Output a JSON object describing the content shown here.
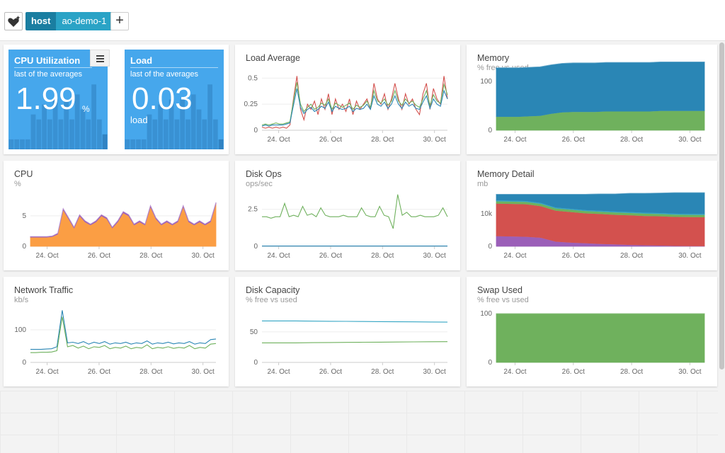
{
  "topbar": {
    "favorite_icon": "heart-star-icon",
    "tag_key": "host",
    "tag_value": "ao-demo-1",
    "add_label": "+"
  },
  "colors": {
    "stat_bg": "#46a7ec",
    "stat_bar": "#2f7fbf",
    "blue": "#2a86b5",
    "green": "#6fb15d",
    "red": "#d3514e",
    "orange": "#fb9e44",
    "purple": "#9b5fb8",
    "teal": "#35a6c4"
  },
  "stats": [
    {
      "title": "CPU Utilization",
      "subtitle": "last of the averages",
      "value": "1.99",
      "unit": "%",
      "has_menu": true,
      "bars": [
        0.1,
        0.1,
        0.1,
        0.1,
        0.35,
        0.3,
        0.45,
        0.3,
        0.5,
        0.3,
        0.5,
        0.3,
        0.55,
        0.4,
        0.3,
        0.65,
        0.3,
        0.15
      ]
    },
    {
      "title": "Load",
      "subtitle": "last of the averages",
      "value": "0.03",
      "unit_below": "load",
      "bars": [
        0.1,
        0.1,
        0.1,
        0.1,
        0.35,
        0.3,
        0.45,
        0.3,
        0.5,
        0.3,
        0.5,
        0.3,
        0.55,
        0.4,
        0.3,
        0.65,
        0.3,
        0.1
      ]
    }
  ],
  "panels": [
    {
      "id": "load-average",
      "title": "Load Average",
      "subtitle": "",
      "chart_data": {
        "type": "line",
        "x_ticks": [
          "24. Oct",
          "26. Oct",
          "28. Oct",
          "30. Oct"
        ],
        "y_ticks": [
          "0",
          "0.25",
          "0.5"
        ],
        "ylim": [
          0,
          0.55
        ],
        "series": [
          {
            "color": "#d3514e",
            "values": [
              0.03,
              0.02,
              0.03,
              0.02,
              0.03,
              0.02,
              0.03,
              0.02,
              0.05,
              0.3,
              0.52,
              0.2,
              0.1,
              0.25,
              0.2,
              0.28,
              0.15,
              0.3,
              0.2,
              0.35,
              0.15,
              0.3,
              0.2,
              0.25,
              0.18,
              0.3,
              0.15,
              0.28,
              0.2,
              0.25,
              0.3,
              0.2,
              0.45,
              0.3,
              0.25,
              0.35,
              0.2,
              0.3,
              0.45,
              0.3,
              0.2,
              0.35,
              0.25,
              0.3,
              0.2,
              0.15,
              0.35,
              0.45,
              0.2,
              0.4,
              0.3,
              0.25,
              0.52,
              0.3
            ]
          },
          {
            "color": "#6fb15d",
            "values": [
              0.05,
              0.06,
              0.05,
              0.06,
              0.07,
              0.06,
              0.06,
              0.07,
              0.08,
              0.28,
              0.46,
              0.25,
              0.18,
              0.22,
              0.25,
              0.2,
              0.22,
              0.26,
              0.24,
              0.3,
              0.2,
              0.26,
              0.24,
              0.22,
              0.24,
              0.26,
              0.2,
              0.24,
              0.22,
              0.24,
              0.28,
              0.22,
              0.38,
              0.28,
              0.26,
              0.3,
              0.24,
              0.28,
              0.38,
              0.28,
              0.24,
              0.3,
              0.26,
              0.28,
              0.24,
              0.22,
              0.3,
              0.38,
              0.24,
              0.34,
              0.28,
              0.26,
              0.44,
              0.34
            ]
          },
          {
            "color": "#2a86b5",
            "values": [
              0.04,
              0.05,
              0.04,
              0.05,
              0.05,
              0.05,
              0.05,
              0.06,
              0.07,
              0.24,
              0.4,
              0.22,
              0.16,
              0.2,
              0.22,
              0.18,
              0.2,
              0.23,
              0.21,
              0.27,
              0.18,
              0.23,
              0.21,
              0.2,
              0.21,
              0.23,
              0.18,
              0.21,
              0.2,
              0.21,
              0.25,
              0.2,
              0.33,
              0.25,
              0.23,
              0.27,
              0.21,
              0.25,
              0.33,
              0.25,
              0.21,
              0.27,
              0.23,
              0.25,
              0.21,
              0.2,
              0.27,
              0.33,
              0.21,
              0.3,
              0.25,
              0.23,
              0.38,
              0.3
            ]
          }
        ]
      }
    },
    {
      "id": "memory",
      "title": "Memory",
      "subtitle": "% free vs used",
      "chart_data": {
        "type": "area",
        "x_ticks": [
          "24. Oct",
          "26. Oct",
          "28. Oct",
          "30. Oct"
        ],
        "y_ticks": [
          "0",
          "100"
        ],
        "ylim": [
          0,
          100
        ],
        "series": [
          {
            "color": "#6fb15d",
            "values": [
              28,
              28,
              28,
              29,
              30,
              34,
              37,
              38,
              38,
              38,
              39,
              39,
              39,
              39,
              39,
              40,
              40,
              40,
              40,
              40
            ]
          },
          {
            "color": "#2a86b5",
            "values": [
              100,
              100,
              100,
              100,
              100,
              100,
              100,
              100,
              100,
              100,
              100,
              100,
              100,
              100,
              100,
              100,
              100,
              100,
              100,
              100
            ]
          }
        ]
      }
    },
    {
      "id": "cpu",
      "title": "CPU",
      "subtitle": "%",
      "chart_data": {
        "type": "area",
        "x_ticks": [
          "24. Oct",
          "26. Oct",
          "28. Oct",
          "30. Oct"
        ],
        "y_ticks": [
          "0",
          "5"
        ],
        "ylim": [
          0,
          8
        ],
        "series": [
          {
            "color": "#fb9e44",
            "values": [
              1.5,
              1.5,
              1.5,
              1.5,
              1.6,
              2.0,
              6.0,
              4.5,
              3.0,
              5.0,
              4.0,
              3.5,
              4.0,
              5.0,
              4.5,
              3.0,
              4.0,
              5.5,
              5.0,
              3.5,
              4.0,
              3.5,
              6.5,
              4.5,
              3.5,
              4.0,
              3.5,
              4.0,
              6.5,
              4.0,
              3.5,
              4.0,
              3.5,
              4.0,
              7.0
            ]
          },
          {
            "color": "#9b5fb8",
            "values": [
              0.1,
              0.1,
              0.1,
              0.1,
              0.1,
              0.15,
              0.2,
              0.2,
              0.15,
              0.2,
              0.2,
              0.15,
              0.2,
              0.2,
              0.2,
              0.15,
              0.2,
              0.2,
              0.2,
              0.15,
              0.2,
              0.15,
              0.2,
              0.2,
              0.15,
              0.2,
              0.15,
              0.2,
              0.2,
              0.2,
              0.15,
              0.2,
              0.15,
              0.2,
              0.2
            ]
          }
        ]
      }
    },
    {
      "id": "disk-ops",
      "title": "Disk Ops",
      "subtitle": "ops/sec",
      "chart_data": {
        "type": "line",
        "x_ticks": [
          "24. Oct",
          "26. Oct",
          "28. Oct",
          "30. Oct"
        ],
        "y_ticks": [
          "0",
          "2.5"
        ],
        "ylim": [
          0,
          3.3
        ],
        "series": [
          {
            "color": "#6fb15d",
            "values": [
              2.0,
              2.0,
              1.9,
              2.0,
              2.0,
              2.9,
              2.0,
              2.1,
              2.0,
              2.7,
              2.1,
              2.2,
              2.0,
              2.6,
              2.1,
              2.0,
              2.0,
              2.0,
              2.1,
              2.0,
              2.0,
              2.0,
              2.6,
              2.1,
              2.0,
              2.0,
              2.7,
              2.1,
              2.0,
              1.2,
              3.5,
              2.1,
              2.3,
              2.0,
              2.0,
              2.1,
              2.0,
              2.0,
              2.0,
              2.1,
              2.6,
              2.0
            ]
          },
          {
            "color": "#2a86b5",
            "values": [
              0.02,
              0.02,
              0.02,
              0.02,
              0.02,
              0.02,
              0.02,
              0.02,
              0.02,
              0.02,
              0.02,
              0.02,
              0.02,
              0.02,
              0.02,
              0.02,
              0.02,
              0.02,
              0.02,
              0.02,
              0.02,
              0.02,
              0.02,
              0.02,
              0.02,
              0.02,
              0.02,
              0.02,
              0.02,
              0.02,
              0.02,
              0.02,
              0.02,
              0.02,
              0.02,
              0.02,
              0.02,
              0.02,
              0.02,
              0.02,
              0.02,
              0.02
            ]
          }
        ]
      }
    },
    {
      "id": "memory-detail",
      "title": "Memory Detail",
      "subtitle": "mb",
      "chart_data": {
        "type": "area",
        "x_ticks": [
          "24. Oct",
          "26. Oct",
          "28. Oct",
          "30. Oct"
        ],
        "y_ticks": [
          "0",
          "10k"
        ],
        "ylim": [
          0,
          15000
        ],
        "series": [
          {
            "color": "#9b5fb8",
            "values": [
              3200,
              3100,
              3000,
              2700,
              1500,
              1200,
              1000,
              800,
              650,
              500,
              400,
              300,
              200,
              150,
              100
            ]
          },
          {
            "color": "#d3514e",
            "values": [
              10000,
              10000,
              10000,
              9700,
              9500,
              9400,
              9200,
              9200,
              9100,
              9100,
              9000,
              9000,
              8900,
              8900,
              8900
            ]
          },
          {
            "color": "#6fb15d",
            "values": [
              700,
              700,
              700,
              700,
              700,
              700,
              700,
              700,
              700,
              700,
              700,
              700,
              700,
              700,
              700
            ]
          },
          {
            "color": "#35a6c4",
            "values": [
              300,
              300,
              300,
              300,
              300,
              300,
              300,
              300,
              300,
              300,
              300,
              300,
              300,
              300,
              300
            ]
          },
          {
            "color": "#2a86b5",
            "values": [
              1800,
              1900,
              2000,
              2600,
              4000,
              4400,
              4800,
              5100,
              5350,
              5700,
              5900,
              6100,
              6400,
              6450,
              6500
            ]
          }
        ]
      }
    },
    {
      "id": "network-traffic",
      "title": "Network Traffic",
      "subtitle": "kb/s",
      "chart_data": {
        "type": "line",
        "x_ticks": [
          "24. Oct",
          "26. Oct",
          "28. Oct",
          "30. Oct"
        ],
        "y_ticks": [
          "0",
          "100"
        ],
        "ylim": [
          0,
          150
        ],
        "series": [
          {
            "color": "#2a86b5",
            "values": [
              40,
              40,
              40,
              41,
              42,
              48,
              160,
              60,
              62,
              58,
              64,
              56,
              62,
              58,
              64,
              56,
              60,
              58,
              62,
              56,
              60,
              58,
              66,
              56,
              60,
              58,
              62,
              57,
              60,
              58,
              64,
              56,
              60,
              58,
              70,
              72
            ]
          },
          {
            "color": "#6fb15d",
            "values": [
              30,
              30,
              31,
              31,
              32,
              36,
              140,
              48,
              52,
              44,
              50,
              42,
              48,
              46,
              52,
              42,
              46,
              44,
              50,
              42,
              46,
              44,
              54,
              42,
              46,
              44,
              48,
              43,
              46,
              44,
              52,
              42,
              46,
              44,
              56,
              58
            ]
          }
        ]
      }
    },
    {
      "id": "disk-capacity",
      "title": "Disk Capacity",
      "subtitle": "% free vs used",
      "chart_data": {
        "type": "line",
        "x_ticks": [
          "24. Oct",
          "26. Oct",
          "28. Oct",
          "30. Oct"
        ],
        "y_ticks": [
          "0",
          "50"
        ],
        "ylim": [
          0,
          80
        ],
        "series": [
          {
            "color": "#35a6c4",
            "values": [
              68,
              68,
              68,
              67.6,
              67.4,
              67.2,
              67,
              66.8,
              66.6,
              66.4,
              66.2,
              66
            ]
          },
          {
            "color": "#6fb15d",
            "values": [
              32,
              32,
              32,
              32.4,
              32.6,
              32.8,
              33,
              33.2,
              33.4,
              33.6,
              33.8,
              34
            ]
          }
        ]
      }
    },
    {
      "id": "swap-used",
      "title": "Swap Used",
      "subtitle": "% free vs used",
      "chart_data": {
        "type": "area",
        "x_ticks": [
          "24. Oct",
          "26. Oct",
          "28. Oct",
          "30. Oct"
        ],
        "y_ticks": [
          "0",
          "100"
        ],
        "ylim": [
          0,
          100
        ],
        "series": [
          {
            "color": "#6fb15d",
            "values": [
              100,
              100,
              100,
              100,
              100,
              100,
              100,
              100,
              100,
              100
            ]
          }
        ]
      }
    }
  ]
}
